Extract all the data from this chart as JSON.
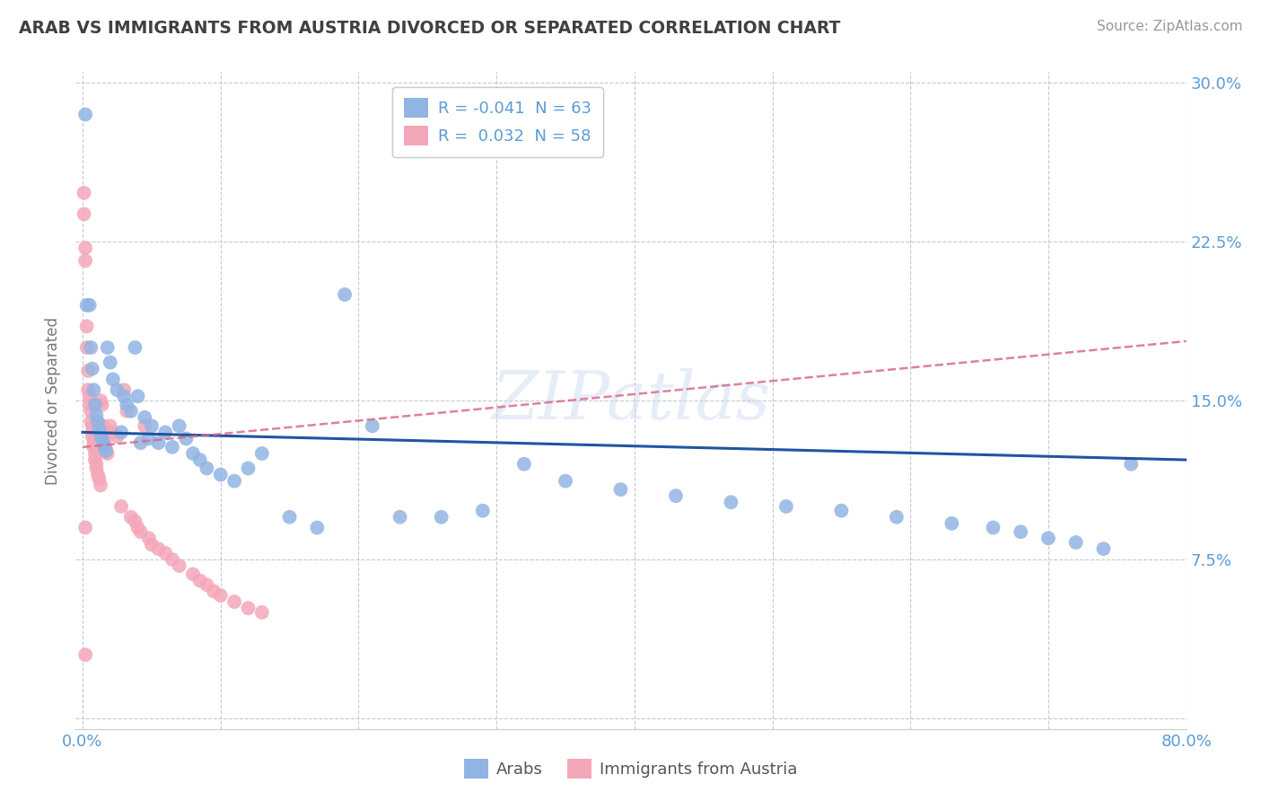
{
  "title": "ARAB VS IMMIGRANTS FROM AUSTRIA DIVORCED OR SEPARATED CORRELATION CHART",
  "source": "Source: ZipAtlas.com",
  "ylabel": "Divorced or Separated",
  "xlim": [
    -0.005,
    0.8
  ],
  "ylim": [
    -0.005,
    0.305
  ],
  "xticks": [
    0.0,
    0.1,
    0.2,
    0.3,
    0.4,
    0.5,
    0.6,
    0.7,
    0.8
  ],
  "yticks": [
    0.0,
    0.075,
    0.15,
    0.225,
    0.3
  ],
  "legend_r_arab": "-0.041",
  "legend_n_arab": "63",
  "legend_r_austria": "0.032",
  "legend_n_austria": "58",
  "watermark": "ZIPatlas",
  "arab_color": "#92B4E3",
  "austria_color": "#F4A7B9",
  "arab_line_color": "#2155a0",
  "austria_line_color": "#d96b8a",
  "grid_color": "#c8c8d4",
  "title_color": "#404040",
  "axis_label_color": "#5b9bd5",
  "arab_x": [
    0.002,
    0.003,
    0.005,
    0.006,
    0.007,
    0.008,
    0.009,
    0.01,
    0.011,
    0.012,
    0.013,
    0.014,
    0.015,
    0.016,
    0.017,
    0.018,
    0.02,
    0.022,
    0.025,
    0.028,
    0.03,
    0.032,
    0.035,
    0.038,
    0.04,
    0.042,
    0.045,
    0.048,
    0.05,
    0.055,
    0.06,
    0.065,
    0.07,
    0.075,
    0.08,
    0.085,
    0.09,
    0.1,
    0.11,
    0.12,
    0.13,
    0.15,
    0.17,
    0.19,
    0.21,
    0.23,
    0.26,
    0.29,
    0.32,
    0.35,
    0.39,
    0.43,
    0.47,
    0.51,
    0.55,
    0.59,
    0.63,
    0.66,
    0.68,
    0.7,
    0.72,
    0.74,
    0.76
  ],
  "arab_y": [
    0.285,
    0.195,
    0.195,
    0.175,
    0.165,
    0.155,
    0.148,
    0.143,
    0.14,
    0.137,
    0.134,
    0.132,
    0.13,
    0.128,
    0.126,
    0.175,
    0.168,
    0.16,
    0.155,
    0.135,
    0.152,
    0.148,
    0.145,
    0.175,
    0.152,
    0.13,
    0.142,
    0.132,
    0.138,
    0.13,
    0.135,
    0.128,
    0.138,
    0.132,
    0.125,
    0.122,
    0.118,
    0.115,
    0.112,
    0.118,
    0.125,
    0.095,
    0.09,
    0.2,
    0.138,
    0.095,
    0.095,
    0.098,
    0.12,
    0.112,
    0.108,
    0.105,
    0.102,
    0.1,
    0.098,
    0.095,
    0.092,
    0.09,
    0.088,
    0.085,
    0.083,
    0.08,
    0.12
  ],
  "austria_x": [
    0.001,
    0.001,
    0.002,
    0.002,
    0.003,
    0.003,
    0.004,
    0.004,
    0.005,
    0.005,
    0.006,
    0.006,
    0.007,
    0.007,
    0.007,
    0.008,
    0.008,
    0.009,
    0.009,
    0.01,
    0.01,
    0.011,
    0.012,
    0.013,
    0.013,
    0.014,
    0.015,
    0.015,
    0.016,
    0.017,
    0.018,
    0.02,
    0.022,
    0.025,
    0.028,
    0.03,
    0.032,
    0.035,
    0.038,
    0.04,
    0.042,
    0.045,
    0.048,
    0.05,
    0.055,
    0.06,
    0.065,
    0.07,
    0.08,
    0.085,
    0.09,
    0.095,
    0.1,
    0.11,
    0.12,
    0.13,
    0.002,
    0.002
  ],
  "austria_y": [
    0.248,
    0.238,
    0.222,
    0.216,
    0.185,
    0.175,
    0.164,
    0.155,
    0.152,
    0.148,
    0.145,
    0.14,
    0.138,
    0.135,
    0.133,
    0.13,
    0.128,
    0.125,
    0.122,
    0.12,
    0.118,
    0.115,
    0.113,
    0.15,
    0.11,
    0.148,
    0.138,
    0.133,
    0.13,
    0.127,
    0.125,
    0.138,
    0.135,
    0.133,
    0.1,
    0.155,
    0.145,
    0.095,
    0.093,
    0.09,
    0.088,
    0.138,
    0.085,
    0.082,
    0.08,
    0.078,
    0.075,
    0.072,
    0.068,
    0.065,
    0.063,
    0.06,
    0.058,
    0.055,
    0.052,
    0.05,
    0.09,
    0.03
  ]
}
